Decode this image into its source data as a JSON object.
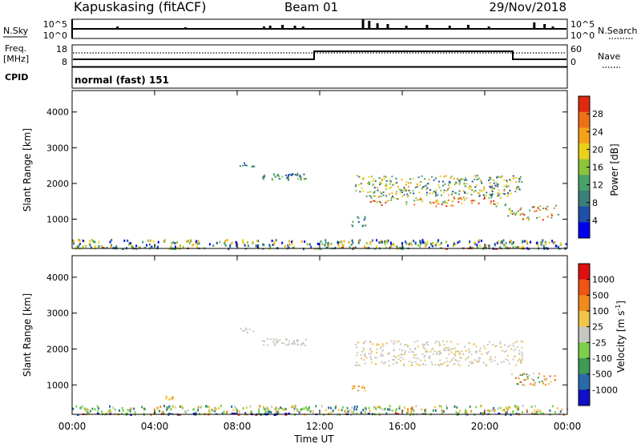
{
  "header": {
    "station": "Kapuskasing (fitACF)",
    "beam": "Beam 01",
    "date": "29/Nov/2018"
  },
  "sky_panel": {
    "left_label": "N.Sky",
    "left_ticks": [
      "10^5",
      "10^0"
    ],
    "right_ticks": [
      "10^5",
      "10^0"
    ],
    "right_label": "N.Search"
  },
  "freq_panel": {
    "left_label_line1": "Freq.",
    "left_label_line2": "[MHz]",
    "left_ticks": [
      "18",
      "8"
    ],
    "right_ticks": [
      "60",
      "0"
    ],
    "right_label": "Nave"
  },
  "cpid": {
    "label": "CPID",
    "value": "normal (fast) 151"
  },
  "chart_data": [
    {
      "type": "heatmap",
      "panel": "power",
      "ylabel": "Slant Range [km]",
      "yticks": [
        "4000",
        "3000",
        "2000",
        "1000"
      ],
      "xticks": [
        "00:00",
        "04:00",
        "08:00",
        "12:00",
        "16:00",
        "20:00",
        "00:00"
      ],
      "colorbar_label": "Power [dB]",
      "colorbar_ticks": [
        "28",
        "24",
        "20",
        "16",
        "12",
        "8",
        "4"
      ],
      "colors": [
        "#0000ee",
        "#1f4fa8",
        "#3a7f7a",
        "#4aa16a",
        "#8cc43c",
        "#e8d21a",
        "#f4a21a",
        "#f07018",
        "#e02a10"
      ]
    },
    {
      "type": "heatmap",
      "panel": "velocity",
      "ylabel": "Slant Range [km]",
      "yticks": [
        "4000",
        "3000",
        "2000",
        "1000"
      ],
      "xticks": [
        "00:00",
        "04:00",
        "08:00",
        "12:00",
        "16:00",
        "20:00",
        "00:00"
      ],
      "xlabel": "Time UT",
      "colorbar_label": "Velocity [m s",
      "colorbar_label_sup": "-1",
      "colorbar_label_end": "]",
      "colorbar_ticks": [
        "1000",
        "500",
        "100",
        "25",
        "-25",
        "-100",
        "-500",
        "-1000"
      ],
      "colors": [
        "#1010c8",
        "#2a6aa8",
        "#3f9a55",
        "#7ed04a",
        "#c8c8c0",
        "#f2c44a",
        "#f08a1a",
        "#f05414",
        "#e01010"
      ]
    }
  ]
}
